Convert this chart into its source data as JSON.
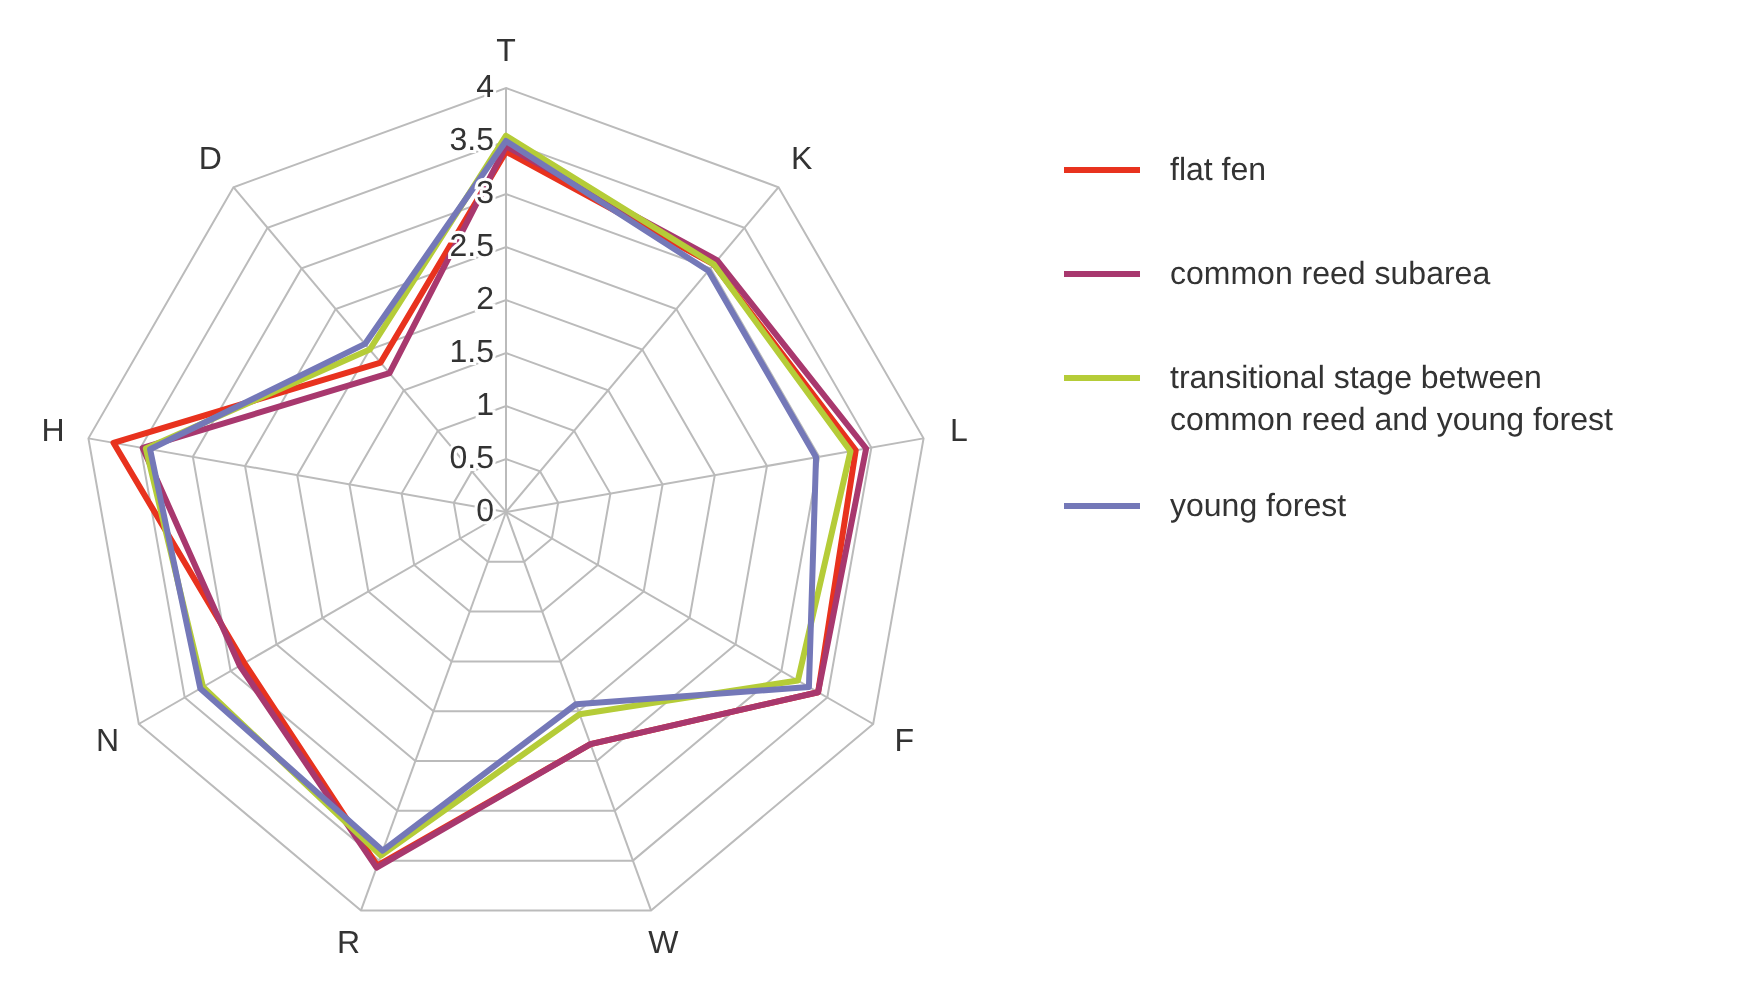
{
  "chart_data": {
    "type": "radar",
    "categories": [
      "T",
      "K",
      "L",
      "F",
      "W",
      "R",
      "N",
      "H",
      "D"
    ],
    "series": [
      {
        "name": "flat fen",
        "color": "#e8321e",
        "values": [
          3.4,
          3.05,
          3.35,
          3.4,
          2.33,
          3.55,
          2.85,
          3.76,
          1.84
        ]
      },
      {
        "name": "common reed subarea",
        "color": "#a8386e",
        "values": [
          3.45,
          3.1,
          3.45,
          3.4,
          2.33,
          3.57,
          2.9,
          3.48,
          1.71
        ]
      },
      {
        "name": "transitional stage between common reed and young forest",
        "color": "#b5cc38",
        "values": [
          3.55,
          3.05,
          3.3,
          3.18,
          2.03,
          3.45,
          3.3,
          3.45,
          2.0
        ]
      },
      {
        "name": "young forest",
        "color": "#7478b8",
        "values": [
          3.5,
          2.97,
          2.97,
          3.3,
          1.93,
          3.4,
          3.33,
          3.41,
          2.07
        ]
      }
    ],
    "ylim": [
      0,
      4
    ],
    "yticks": [
      0,
      0.5,
      1,
      1.5,
      2,
      2.5,
      3,
      3.5,
      4
    ],
    "grid": true,
    "legend": "right"
  }
}
